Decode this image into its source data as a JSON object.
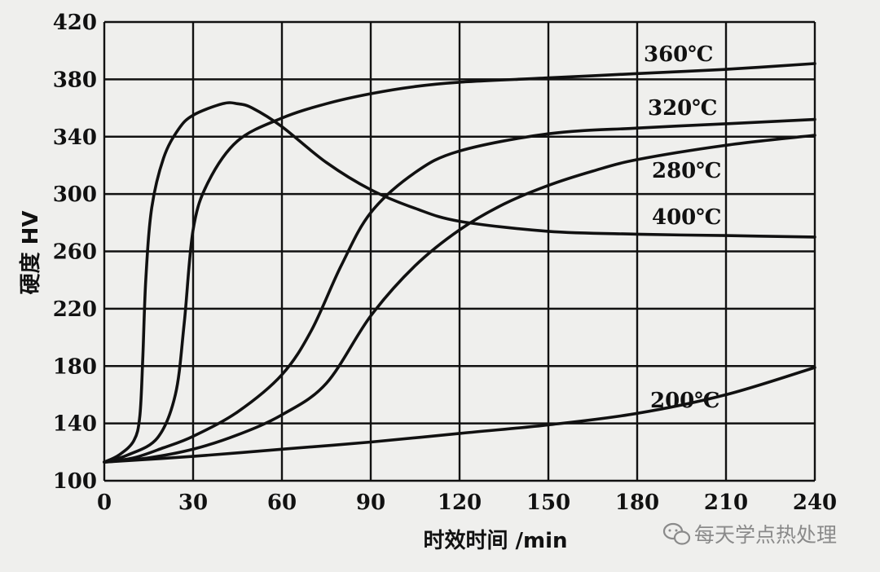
{
  "chart_data": {
    "type": "line",
    "title": "",
    "xlabel": "时效时间 /min",
    "ylabel": "硬度 HV",
    "xlim": [
      0,
      240
    ],
    "ylim": [
      100,
      420
    ],
    "xticks": [
      0,
      30,
      60,
      90,
      120,
      150,
      180,
      210,
      240
    ],
    "yticks": [
      100,
      140,
      180,
      220,
      260,
      300,
      340,
      380,
      420
    ],
    "grid": true,
    "series": [
      {
        "name": "200℃",
        "x": [
          0,
          30,
          60,
          90,
          120,
          150,
          180,
          210,
          240
        ],
        "y": [
          113,
          117,
          122,
          127,
          133,
          139,
          147,
          160,
          179
        ]
      },
      {
        "name": "280℃",
        "x": [
          0,
          15,
          30,
          45,
          60,
          75,
          90,
          105,
          120,
          135,
          150,
          165,
          180,
          210,
          240
        ],
        "y": [
          113,
          116,
          122,
          132,
          146,
          168,
          215,
          250,
          275,
          293,
          306,
          316,
          324,
          334,
          341
        ]
      },
      {
        "name": "320℃",
        "x": [
          0,
          10,
          20,
          30,
          45,
          60,
          70,
          80,
          90,
          105,
          120,
          150,
          180,
          210,
          240
        ],
        "y": [
          113,
          116,
          123,
          131,
          148,
          174,
          205,
          250,
          287,
          315,
          330,
          342,
          346,
          349,
          352
        ]
      },
      {
        "name": "360℃",
        "x": [
          0,
          8,
          18,
          24,
          27,
          30,
          35,
          45,
          60,
          75,
          90,
          105,
          120,
          150,
          180,
          210,
          240
        ],
        "y": [
          113,
          118,
          130,
          160,
          210,
          275,
          308,
          337,
          353,
          363,
          370,
          375,
          378,
          381,
          384,
          387,
          391
        ]
      },
      {
        "name": "400℃",
        "x": [
          0,
          5,
          10,
          12,
          13,
          14,
          16,
          20,
          25,
          30,
          40,
          45,
          50,
          60,
          75,
          90,
          105,
          120,
          150,
          180,
          210,
          240
        ],
        "y": [
          113,
          118,
          128,
          145,
          185,
          240,
          290,
          325,
          345,
          355,
          363,
          363,
          360,
          347,
          322,
          303,
          290,
          281,
          274,
          272,
          271,
          270
        ]
      }
    ],
    "annotations": [
      {
        "text": "360℃",
        "series": "360℃"
      },
      {
        "text": "320℃",
        "series": "320℃"
      },
      {
        "text": "280℃",
        "series": "280℃"
      },
      {
        "text": "400℃",
        "series": "400℃"
      },
      {
        "text": "200℃",
        "series": "200℃"
      }
    ]
  },
  "watermark": {
    "icon": "wechat-icon",
    "text": "每天学点热处理"
  }
}
